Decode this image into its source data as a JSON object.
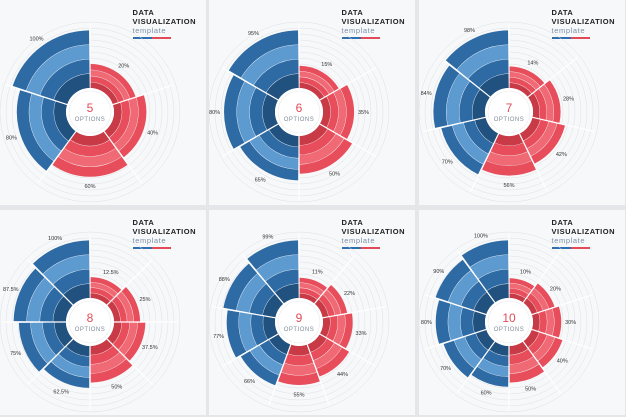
{
  "header": {
    "line1": "DATA",
    "line2": "VISUALIZATION",
    "line3": "template"
  },
  "colors": {
    "red": "#e84d5b",
    "red_dark": "#c93a47",
    "blue": "#2e6aa4",
    "blue_light": "#5c9ad0",
    "blue_dark": "#21517f"
  },
  "chart_data": [
    {
      "type": "pie",
      "center_number": "5",
      "center_label": "OPTIONS",
      "slices": [
        {
          "label": "20%",
          "value": 20
        },
        {
          "label": "40%",
          "value": 40
        },
        {
          "label": "60%",
          "value": 60
        },
        {
          "label": "80%",
          "value": 80
        },
        {
          "label": "100%",
          "value": 100
        }
      ]
    },
    {
      "type": "pie",
      "center_number": "6",
      "center_label": "OPTIONS",
      "slices": [
        {
          "label": "15%",
          "value": 15
        },
        {
          "label": "35%",
          "value": 35
        },
        {
          "label": "50%",
          "value": 50
        },
        {
          "label": "65%",
          "value": 65
        },
        {
          "label": "80%",
          "value": 80
        },
        {
          "label": "95%",
          "value": 95
        }
      ]
    },
    {
      "type": "pie",
      "center_number": "7",
      "center_label": "OPTIONS",
      "slices": [
        {
          "label": "14%",
          "value": 14
        },
        {
          "label": "28%",
          "value": 28
        },
        {
          "label": "42%",
          "value": 42
        },
        {
          "label": "56%",
          "value": 56
        },
        {
          "label": "70%",
          "value": 70
        },
        {
          "label": "84%",
          "value": 84
        },
        {
          "label": "98%",
          "value": 98
        }
      ]
    },
    {
      "type": "pie",
      "center_number": "8",
      "center_label": "OPTIONS",
      "slices": [
        {
          "label": "12.5%",
          "value": 12.5
        },
        {
          "label": "25%",
          "value": 25
        },
        {
          "label": "37.5%",
          "value": 37.5
        },
        {
          "label": "50%",
          "value": 50
        },
        {
          "label": "62.5%",
          "value": 62.5
        },
        {
          "label": "75%",
          "value": 75
        },
        {
          "label": "87.5%",
          "value": 87.5
        },
        {
          "label": "100%",
          "value": 100
        }
      ]
    },
    {
      "type": "pie",
      "center_number": "9",
      "center_label": "OPTIONS",
      "slices": [
        {
          "label": "11%",
          "value": 11
        },
        {
          "label": "22%",
          "value": 22
        },
        {
          "label": "33%",
          "value": 33
        },
        {
          "label": "44%",
          "value": 44
        },
        {
          "label": "55%",
          "value": 55
        },
        {
          "label": "66%",
          "value": 66
        },
        {
          "label": "77%",
          "value": 77
        },
        {
          "label": "88%",
          "value": 88
        },
        {
          "label": "99%",
          "value": 99
        }
      ]
    },
    {
      "type": "pie",
      "center_number": "10",
      "center_label": "OPTIONS",
      "slices": [
        {
          "label": "10%",
          "value": 10
        },
        {
          "label": "20%",
          "value": 20
        },
        {
          "label": "30%",
          "value": 30
        },
        {
          "label": "40%",
          "value": 40
        },
        {
          "label": "50%",
          "value": 50
        },
        {
          "label": "60%",
          "value": 60
        },
        {
          "label": "70%",
          "value": 70
        },
        {
          "label": "80%",
          "value": 80
        },
        {
          "label": "90%",
          "value": 90
        },
        {
          "label": "100%",
          "value": 100
        }
      ]
    }
  ]
}
